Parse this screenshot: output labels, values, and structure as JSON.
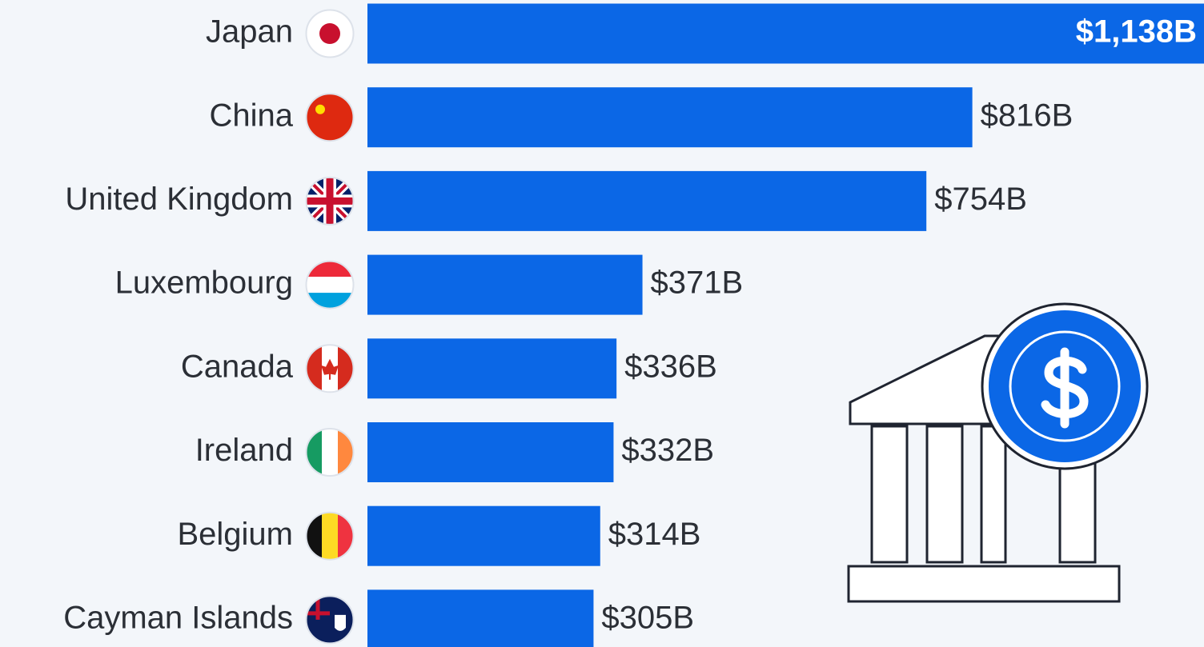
{
  "chart_data": {
    "type": "bar",
    "orientation": "horizontal",
    "categories": [
      "Japan",
      "China",
      "United Kingdom",
      "Luxembourg",
      "Canada",
      "Ireland",
      "Belgium",
      "Cayman Islands"
    ],
    "values": [
      1138,
      816,
      754,
      371,
      336,
      332,
      314,
      305
    ],
    "value_labels": [
      "$1,138B",
      "$816B",
      "$754B",
      "$371B",
      "$336B",
      "$332B",
      "$314B",
      "$305B"
    ],
    "color": "#0b67e6"
  }
}
